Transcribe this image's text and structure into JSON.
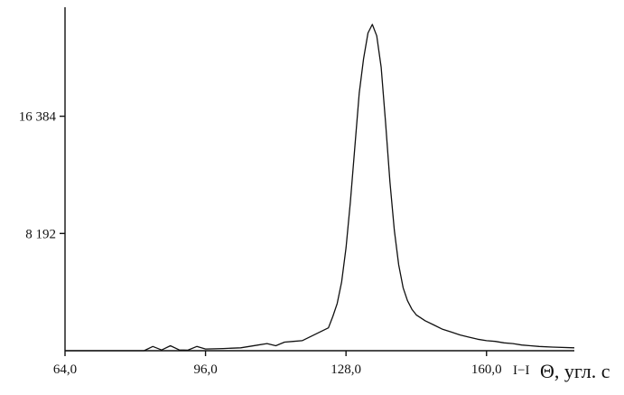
{
  "chart_data": {
    "type": "line",
    "title": "",
    "xlabel": "Θ, угл. с",
    "xlabel_prefix": "I−I",
    "ylabel": "",
    "xlim": [
      64,
      180
    ],
    "ylim": [
      0,
      24000
    ],
    "xticks": [
      {
        "value": 64,
        "label": "64,0"
      },
      {
        "value": 96,
        "label": "96,0"
      },
      {
        "value": 128,
        "label": "128,0"
      },
      {
        "value": 160,
        "label": "160,0"
      }
    ],
    "yticks": [
      {
        "value": 8192,
        "label": "8 192"
      },
      {
        "value": 16384,
        "label": "16 384"
      }
    ],
    "grid": false,
    "line_color": "#111111",
    "series": [
      {
        "x": [
          64,
          70,
          76,
          80,
          82,
          84,
          86,
          88,
          90,
          92,
          94,
          96,
          100,
          104,
          108,
          110,
          112,
          114,
          116,
          118,
          120,
          122,
          124,
          125,
          126,
          127,
          128,
          129,
          130,
          131,
          132,
          133,
          134,
          135,
          136,
          137,
          138,
          139,
          140,
          141,
          142,
          143,
          144,
          145,
          146,
          148,
          150,
          152,
          154,
          156,
          158,
          160,
          162,
          164,
          166,
          168,
          170,
          172,
          175,
          180
        ],
        "y": [
          0,
          0,
          0,
          0,
          0,
          300,
          50,
          350,
          60,
          40,
          300,
          120,
          150,
          200,
          400,
          500,
          350,
          600,
          650,
          700,
          1000,
          1300,
          1600,
          2400,
          3300,
          4800,
          7200,
          10400,
          14200,
          18000,
          20400,
          22200,
          22800,
          22000,
          19800,
          16000,
          11800,
          8400,
          6000,
          4400,
          3500,
          2900,
          2500,
          2300,
          2100,
          1800,
          1500,
          1300,
          1100,
          950,
          800,
          700,
          650,
          550,
          500,
          400,
          350,
          300,
          250,
          200
        ]
      }
    ]
  }
}
